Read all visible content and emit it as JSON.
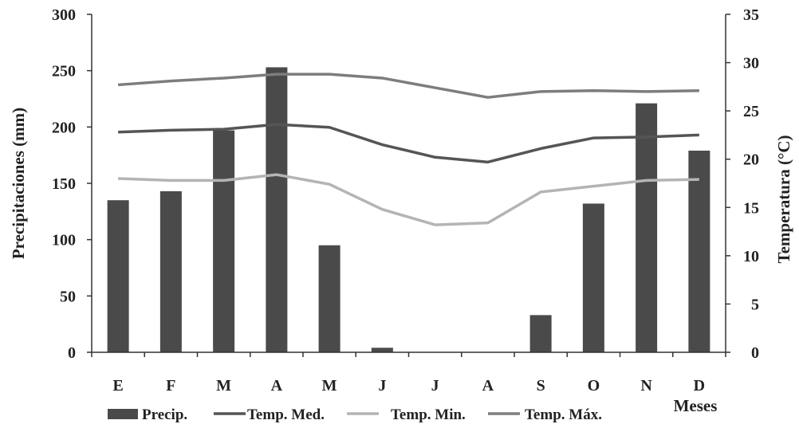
{
  "chart_data": {
    "type": "bar",
    "categories": [
      "E",
      "F",
      "M",
      "A",
      "M",
      "J",
      "J",
      "A",
      "S",
      "O",
      "N",
      "D"
    ],
    "x_axis_label": "Meses",
    "y_left": {
      "label": "Precipitaciones (mm)",
      "range": [
        0,
        300
      ],
      "ticks": [
        0,
        50,
        100,
        150,
        200,
        250,
        300
      ]
    },
    "y_right": {
      "label": "Temperatura (°C)",
      "range": [
        0,
        35
      ],
      "ticks": [
        0,
        5,
        10,
        15,
        20,
        25,
        30,
        35
      ]
    },
    "grid": false,
    "legend_position": "bottom",
    "series": [
      {
        "name": "Precip.",
        "kind": "bar",
        "axis": "left",
        "color": "#4a4a4a",
        "values": [
          135,
          143,
          197,
          253,
          95,
          4,
          0,
          0,
          33,
          132,
          221,
          179
        ]
      },
      {
        "name": "Temp. Med.",
        "kind": "line",
        "axis": "right",
        "color": "#555555",
        "values": [
          22.8,
          23.0,
          23.1,
          23.6,
          23.3,
          21.5,
          20.2,
          19.7,
          21.1,
          22.2,
          22.3,
          22.5
        ]
      },
      {
        "name": "Temp. Min.",
        "kind": "line",
        "axis": "right",
        "color": "#b4b4b4",
        "values": [
          18.0,
          17.8,
          17.8,
          18.4,
          17.4,
          14.8,
          13.2,
          13.4,
          16.6,
          17.2,
          17.8,
          17.9
        ]
      },
      {
        "name": "Temp. Máx.",
        "kind": "line",
        "axis": "right",
        "color": "#7d7d7d",
        "values": [
          27.7,
          28.1,
          28.4,
          28.8,
          28.8,
          28.4,
          27.4,
          26.4,
          27.0,
          27.1,
          27.0,
          27.1
        ]
      }
    ]
  }
}
